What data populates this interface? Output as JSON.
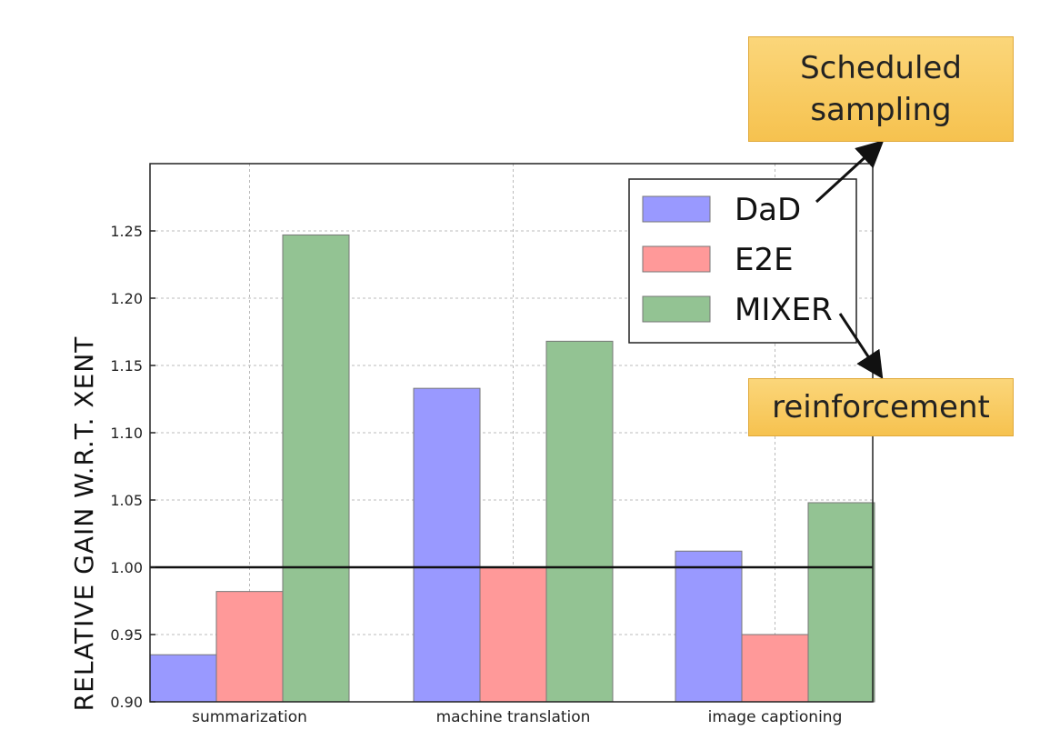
{
  "chart_data": {
    "type": "bar",
    "categories": [
      "summarization",
      "machine translation",
      "image captioning"
    ],
    "series": [
      {
        "name": "DaD",
        "values": [
          0.935,
          1.133,
          1.012
        ],
        "color": "#9999ff"
      },
      {
        "name": "E2E",
        "values": [
          0.982,
          1.0,
          0.95
        ],
        "color": "#ff9999"
      },
      {
        "name": "MIXER",
        "values": [
          1.247,
          1.168,
          1.048
        ],
        "color": "#93c393"
      }
    ],
    "ylabel": "RELATIVE GAIN W.R.T. XENT",
    "xlabel": "",
    "ylim": [
      0.9,
      1.3
    ],
    "yticks": [
      "0.90",
      "0.95",
      "1.00",
      "1.05",
      "1.10",
      "1.15",
      "1.20",
      "1.25"
    ],
    "reference_line": 1.0,
    "grid": true,
    "legend_position": "top-right"
  },
  "annotations": {
    "scheduled_sampling": "Scheduled\nsampling",
    "reinforcement": "reinforcement"
  }
}
